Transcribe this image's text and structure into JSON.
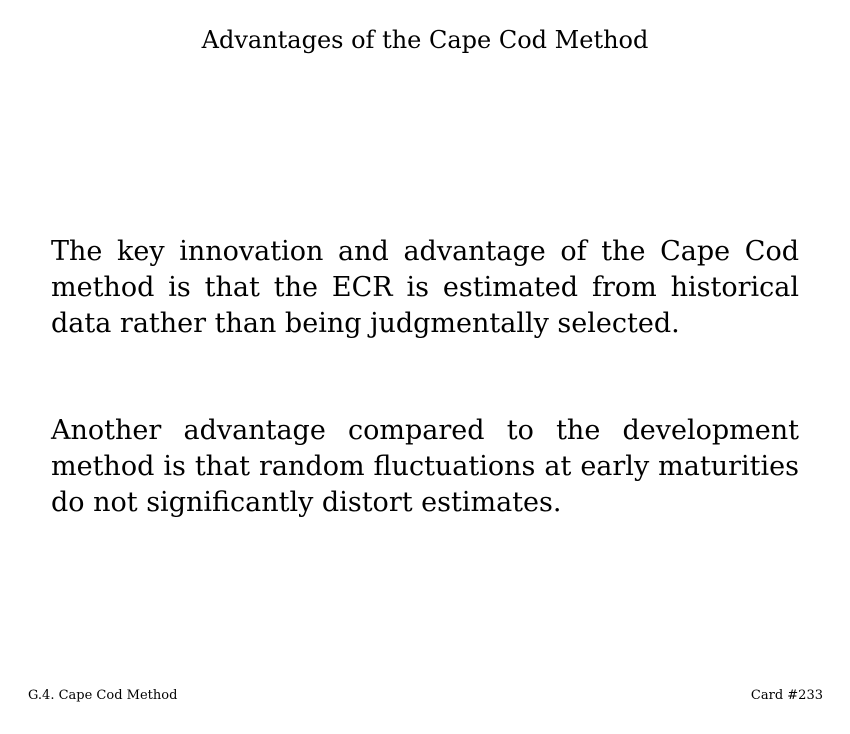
{
  "card": {
    "title": "Advantages of the Cape Cod Method",
    "paragraphs": [
      "The key innovation and advantage of the Cape Cod method is that the ECR is estimated from historical data rather than being judgmentally selected.",
      "Another advantage compared to the development method is that random fluctuations at early maturities do not significantly distort estimates."
    ]
  },
  "footer": {
    "section": "G.4. Cape Cod Method",
    "card_number": "Card #233"
  }
}
